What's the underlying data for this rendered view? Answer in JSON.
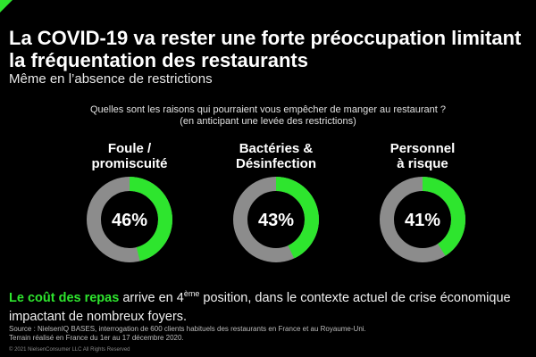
{
  "title": "La COVID-19 va rester une forte préoccupation limitant la fréquentation des restaurants",
  "subtitle": "Même en l’absence de restrictions",
  "question": {
    "line1": "Quelles sont les raisons qui pourraient vous empêcher de manger au restaurant ?",
    "line2": "(en anticipant une levée des restrictions)"
  },
  "colors": {
    "accent": "#2ee52e",
    "track": "#8c8c8c",
    "background": "#000000"
  },
  "chart_data": {
    "type": "pie",
    "categories": [
      "Foule / promiscuité",
      "Bactéries & Désinfection",
      "Personnel à risque"
    ],
    "values": [
      46,
      43,
      41
    ],
    "value_labels": [
      "46%",
      "43%",
      "41%"
    ],
    "max": 100,
    "style": "donut"
  },
  "gauges": [
    {
      "label": "Foule /\npromiscuité"
    },
    {
      "label": "Bactéries &\nDésinfection"
    },
    {
      "label": "Personnel\nà risque"
    }
  ],
  "bottom": {
    "highlight": "Le coût des repas",
    "text_before_sup": " arrive en 4",
    "sup": "ème",
    "text_after_sup": " position, dans le contexte actuel de crise économique impactant de nombreux foyers."
  },
  "source": {
    "line1": "Source : NielsenIQ BASES, interrogation de 600 clients habituels des restaurants en France et au Royaume-Uni.",
    "line2": "Terrain réalisé en France du 1er au 17 décembre 2020."
  },
  "copyright": "© 2021 NielsenConsumer LLC All Rights Reserved"
}
